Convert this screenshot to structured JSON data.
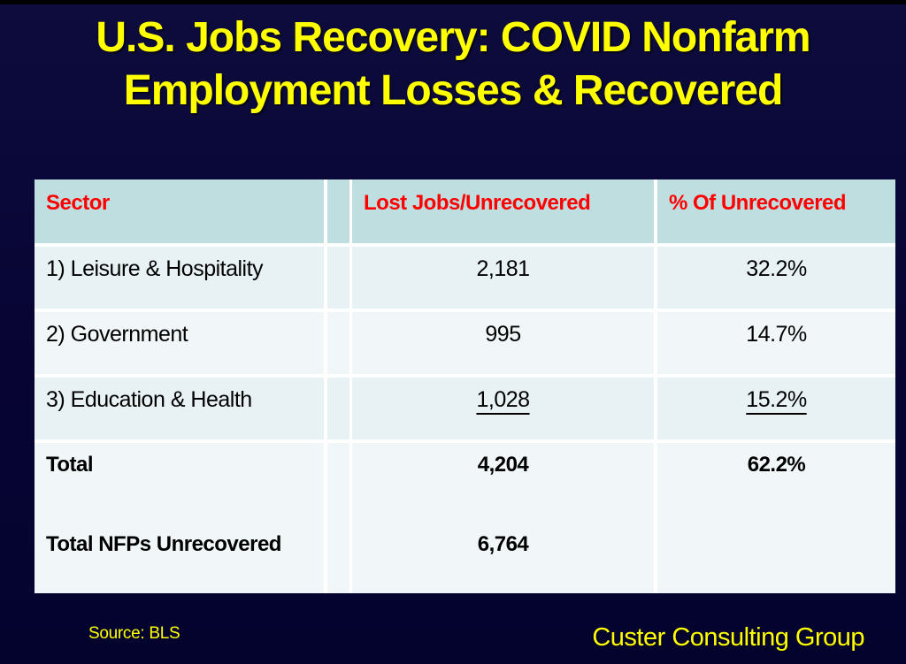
{
  "slide": {
    "title_line1": "U.S. Jobs Recovery: COVID Nonfarm",
    "title_line2": "Employment Losses & Recovered",
    "source_note": "Source: BLS",
    "brand": "Custer Consulting Group"
  },
  "colors": {
    "background_navy": "#070434",
    "title_yellow": "#FFFF00",
    "header_red": "#FF0000",
    "header_bg_teal": "#BFDEE0",
    "row_bg_light": "#E8F2F4",
    "row_bg_lighter": "#F1F7F8",
    "gridline_white": "#FFFFFF",
    "body_text": "#000000"
  },
  "chart_data": {
    "type": "table",
    "title": "U.S. Jobs Recovery: COVID Nonfarm Employment Losses & Recovered",
    "columns": [
      "Sector",
      "Lost Jobs/Unrecovered",
      "% Of Unrecovered"
    ],
    "rows": [
      [
        "1) Leisure & Hospitality",
        "2,181",
        "32.2%"
      ],
      [
        "2) Government",
        "995",
        "14.7%"
      ],
      [
        "3) Education & Health",
        "1,028",
        "15.2%"
      ],
      [
        "Total",
        "4,204",
        "62.2%"
      ],
      [
        "Total NFPs Unrecovered",
        "6,764",
        ""
      ]
    ],
    "layout_hints": {
      "underlined_row_index": 2,
      "bold_row_indices": [
        3,
        4
      ],
      "banded_rows": true,
      "gridlines": "white"
    },
    "source": "Source: BLS"
  }
}
